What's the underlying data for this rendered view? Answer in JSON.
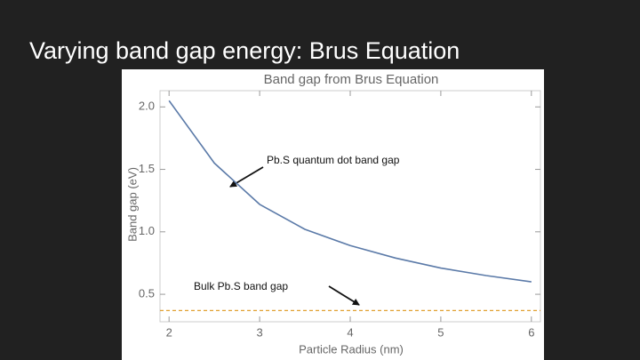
{
  "slide_title": "Varying band gap energy: Brus Equation",
  "chart_data": {
    "type": "line",
    "title": "Band gap from Brus Equation",
    "x_label": "Particle Radius (nm)",
    "y_label": "Band gap (eV)",
    "x": [
      2,
      2.5,
      3,
      3.5,
      4,
      4.5,
      5,
      5.5,
      6
    ],
    "series": [
      {
        "name": "Pb.S quantum dot band gap",
        "color": "#5b7aa8",
        "values": [
          2.05,
          1.55,
          1.22,
          1.02,
          0.89,
          0.79,
          0.71,
          0.65,
          0.6
        ]
      }
    ],
    "reference_line": {
      "name": "Bulk Pb.S band gap",
      "value": 0.37,
      "color": "#e0a030"
    },
    "xlim": [
      1.9,
      6.1
    ],
    "ylim": [
      0.28,
      2.13
    ],
    "xticks": [
      2,
      3,
      4,
      5,
      6
    ],
    "yticks": [
      {
        "value": 2.0,
        "label": "2.0"
      },
      {
        "value": 1.5,
        "label": "1.5"
      },
      {
        "value": 1.0,
        "label": "1.0"
      },
      {
        "value": 0.5,
        "label": "0.5"
      }
    ]
  }
}
